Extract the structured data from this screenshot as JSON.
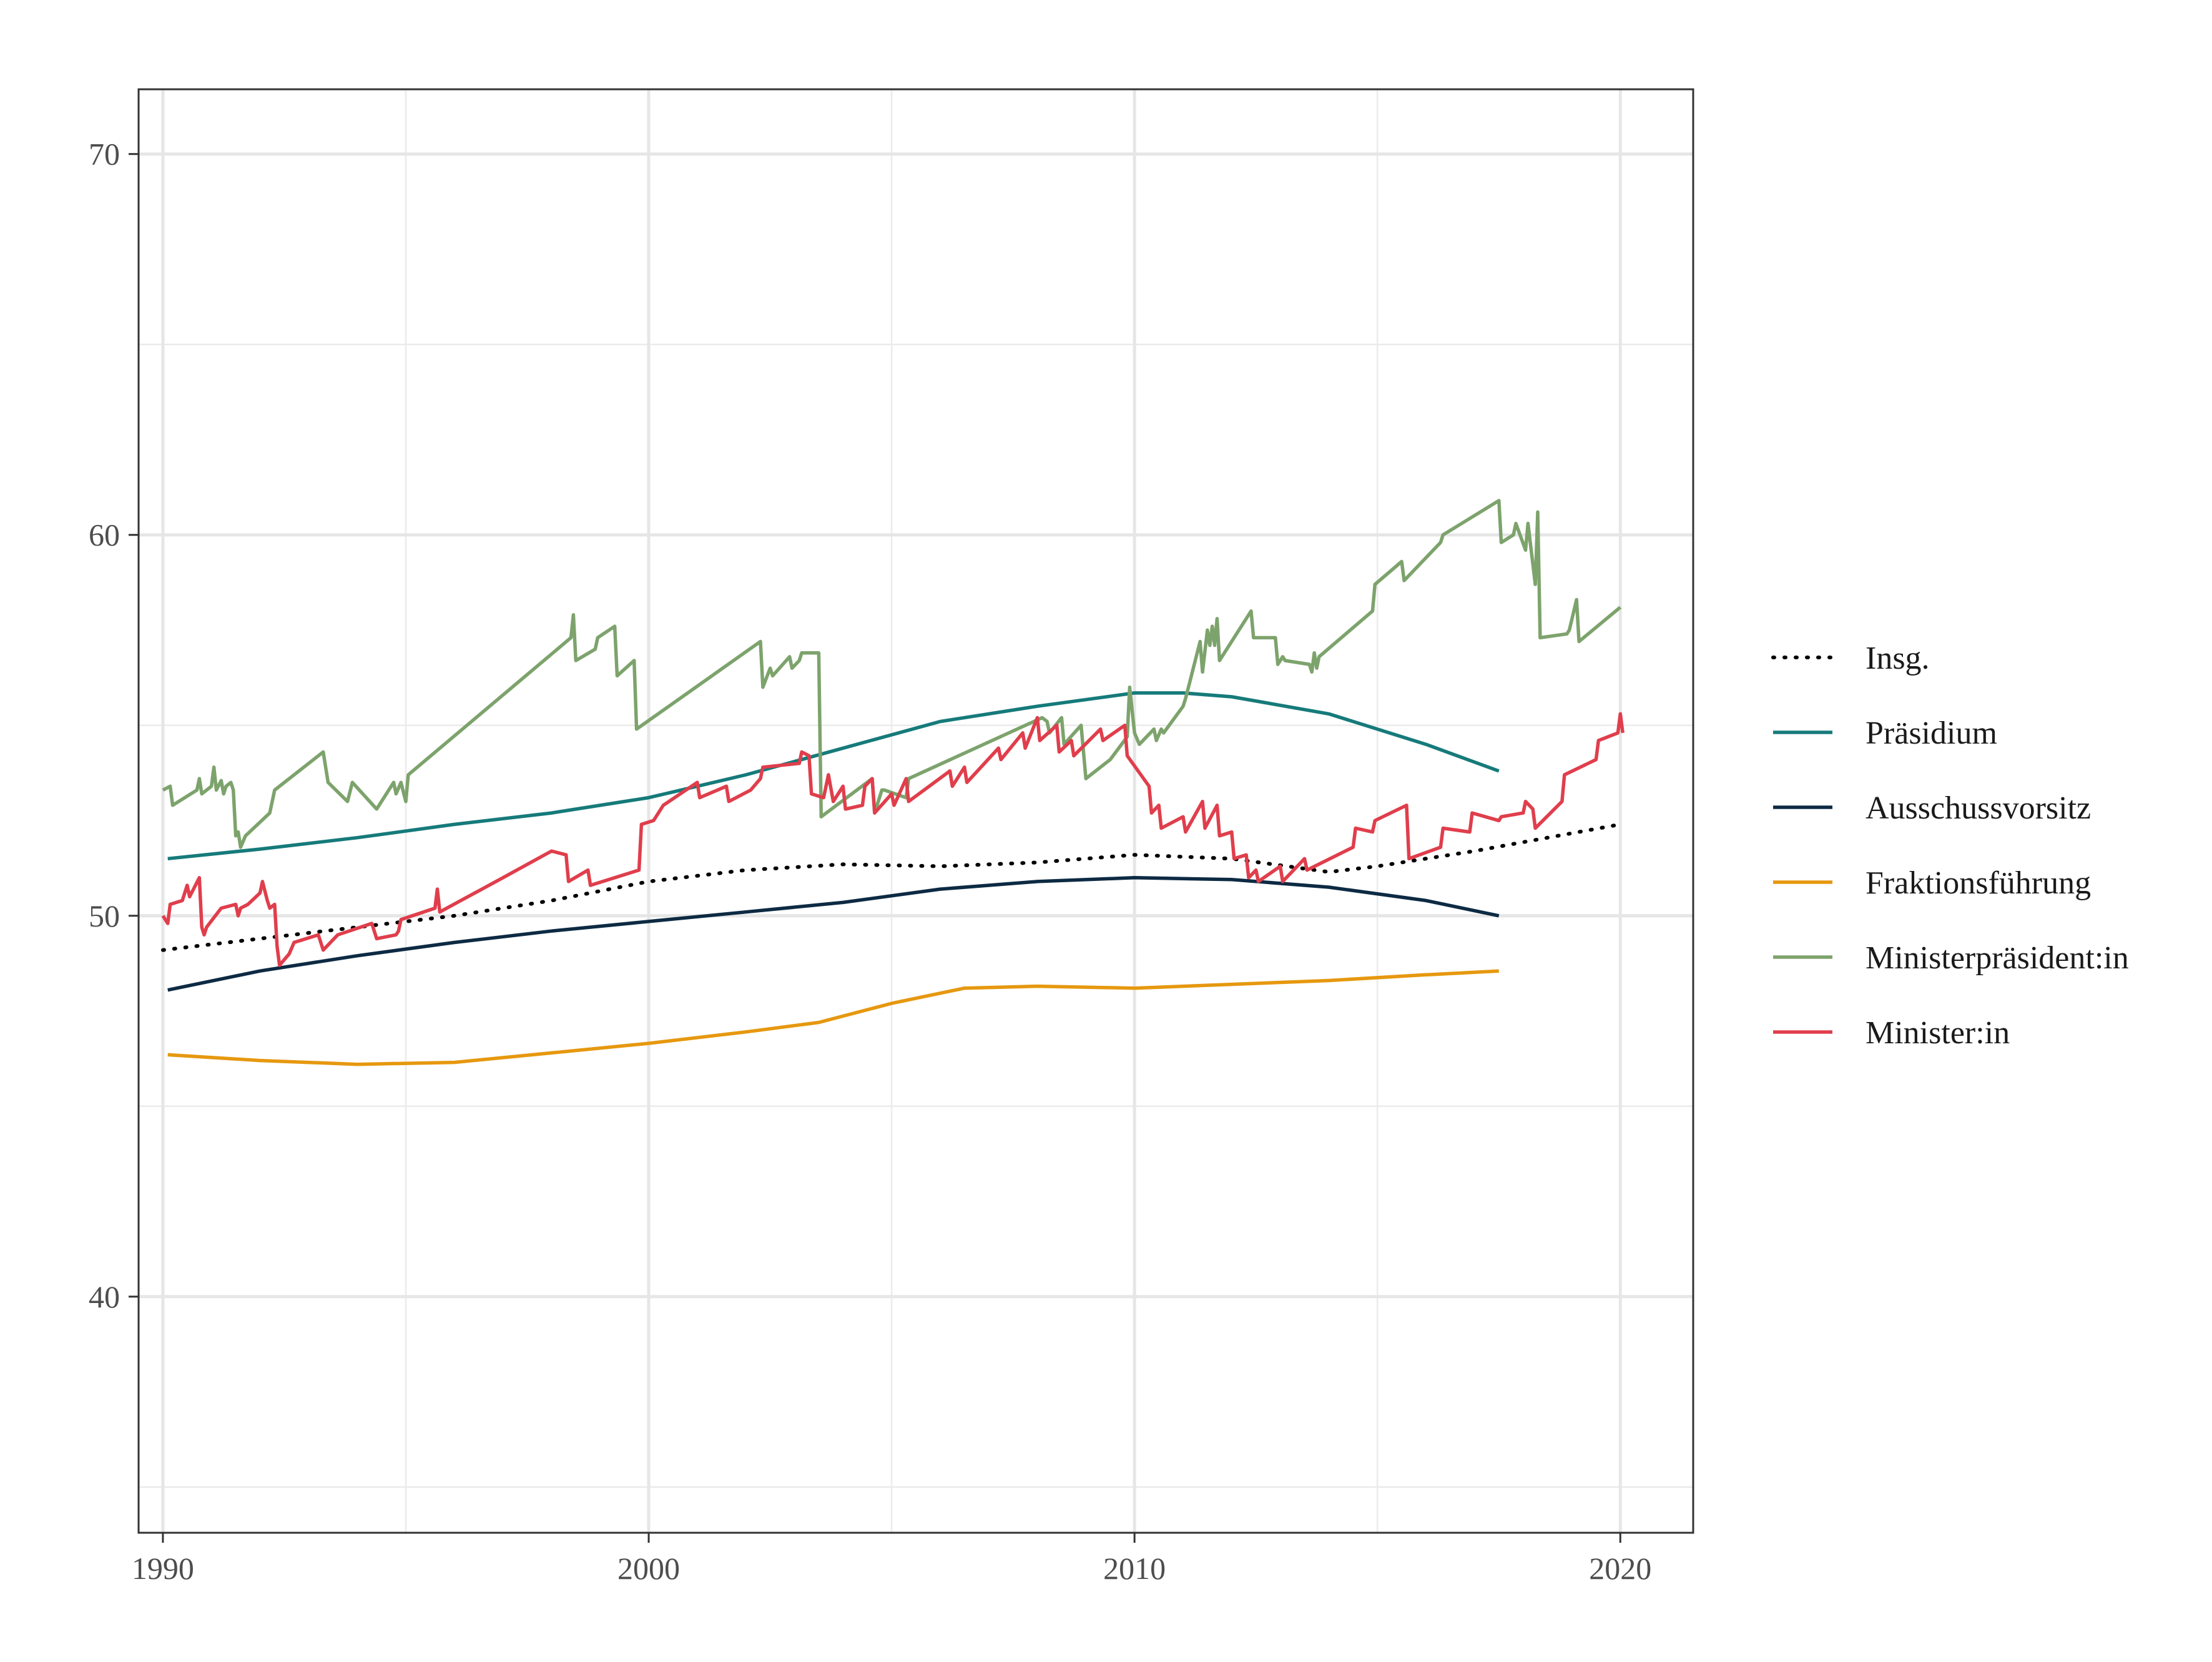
{
  "chart_data": {
    "type": "line",
    "title": "",
    "xlabel": "",
    "ylabel": "",
    "xlim": [
      1989.5,
      2021.5
    ],
    "ylim": [
      33.8,
      71.7
    ],
    "x_ticks": [
      1990,
      2000,
      2010,
      2020
    ],
    "x_tick_labels": [
      "1990",
      "2000",
      "2010",
      "2020"
    ],
    "y_ticks": [
      40,
      50,
      60,
      70
    ],
    "y_tick_labels": [
      "40",
      "50",
      "60",
      "70"
    ],
    "x_minor_grid": [
      1995,
      2005,
      2015
    ],
    "y_minor_grid": [
      35,
      45,
      55,
      65
    ],
    "grid": true,
    "legend_position": "right",
    "series": [
      {
        "name": "Insg.",
        "color": "#000000",
        "dash": "dotted",
        "x": [
          1990,
          1992,
          1994,
          1996,
          1998,
          2000,
          2002,
          2004,
          2006,
          2008,
          2010,
          2012,
          2014,
          2015,
          2017,
          2020
        ],
        "y": [
          49.1,
          49.4,
          49.7,
          50.0,
          50.4,
          50.9,
          51.2,
          51.35,
          51.3,
          51.4,
          51.6,
          51.5,
          51.15,
          51.3,
          51.7,
          52.4
        ]
      },
      {
        "name": "Präsidium",
        "color": "#167a7a",
        "dash": "solid",
        "x": [
          1990.1,
          1992,
          1994,
          1996,
          1998,
          2000,
          2002,
          2004,
          2006,
          2008,
          2010,
          2011,
          2012,
          2014,
          2016,
          2017.5
        ],
        "y": [
          51.5,
          51.75,
          52.05,
          52.4,
          52.7,
          53.1,
          53.7,
          54.4,
          55.1,
          55.5,
          55.85,
          55.85,
          55.75,
          55.3,
          54.5,
          53.8
        ]
      },
      {
        "name": "Ausschussvorsitz",
        "color": "#0d2a43",
        "dash": "solid",
        "x": [
          1990.1,
          1992,
          1994,
          1996,
          1998,
          2000,
          2002,
          2004,
          2006,
          2008,
          2010,
          2012,
          2014,
          2016,
          2017.5
        ],
        "y": [
          48.05,
          48.55,
          48.95,
          49.3,
          49.6,
          49.85,
          50.1,
          50.35,
          50.7,
          50.9,
          51.0,
          50.95,
          50.75,
          50.4,
          50.0
        ]
      },
      {
        "name": "Fraktionsführung",
        "color": "#e6980f",
        "dash": "solid",
        "x": [
          1990.1,
          1992,
          1994,
          1996,
          1998,
          2000,
          2002,
          2003.5,
          2005,
          2006.5,
          2008,
          2010,
          2012,
          2014,
          2016,
          2017.5
        ],
        "y": [
          46.35,
          46.2,
          46.1,
          46.15,
          46.4,
          46.65,
          46.95,
          47.2,
          47.7,
          48.1,
          48.15,
          48.1,
          48.2,
          48.3,
          48.45,
          48.55
        ]
      },
      {
        "name": "Ministerpräsident:in",
        "color": "#7da36c",
        "dash": "solid",
        "x": [
          1990,
          1990.15,
          1990.2,
          1990.7,
          1990.75,
          1990.8,
          1991,
          1991.05,
          1991.1,
          1991.2,
          1991.25,
          1991.3,
          1991.4,
          1991.45,
          1991.5,
          1991.55,
          1991.6,
          1991.7,
          1992.2,
          1992.3,
          1993.3,
          1993.35,
          1993.4,
          1993.8,
          1993.9,
          1994.4,
          1994.5,
          1994.75,
          1994.8,
          1994.9,
          1995,
          1995.05,
          1998.4,
          1998.45,
          1998.5,
          1998.9,
          1998.95,
          1999.3,
          1999.35,
          1999.7,
          1999.75,
          2002.3,
          2002.35,
          2002.5,
          2002.55,
          2002.9,
          2002.95,
          2003.1,
          2003.15,
          2003.5,
          2003.55,
          2004.6,
          2004.65,
          2004.8,
          2004.85,
          2005.3,
          2005.35,
          2008.1,
          2008.2,
          2008.25,
          2008.5,
          2008.55,
          2008.9,
          2009.0,
          2009.5,
          2009.85,
          2009.9,
          2010.0,
          2010.1,
          2010.4,
          2010.45,
          2010.55,
          2010.6,
          2011.0,
          2011.05,
          2011.35,
          2011.4,
          2011.5,
          2011.55,
          2011.6,
          2011.65,
          2011.7,
          2011.75,
          2012.4,
          2012.45,
          2012.9,
          2012.95,
          2013.05,
          2013.1,
          2013.6,
          2013.65,
          2013.7,
          2013.75,
          2013.8,
          2014.9,
          2014.95,
          2015.5,
          2015.55,
          2016.3,
          2016.35,
          2017.5,
          2017.55,
          2017.8,
          2017.85,
          2018.05,
          2018.1,
          2018.25,
          2018.3,
          2018.35,
          2018.9,
          2018.95,
          2019.1,
          2019.15,
          2020
        ],
        "y": [
          53.3,
          53.4,
          52.9,
          53.3,
          53.6,
          53.2,
          53.4,
          53.9,
          53.3,
          53.55,
          53.2,
          53.4,
          53.5,
          53.3,
          52.1,
          52.2,
          51.8,
          52.1,
          52.7,
          53.3,
          54.3,
          53.9,
          53.5,
          53.0,
          53.5,
          52.8,
          53.0,
          53.5,
          53.2,
          53.5,
          53.0,
          53.7,
          57.3,
          57.9,
          56.7,
          57.0,
          57.3,
          57.6,
          56.3,
          56.7,
          54.9,
          57.2,
          56.0,
          56.5,
          56.3,
          56.8,
          56.5,
          56.7,
          56.9,
          56.9,
          52.6,
          53.6,
          52.7,
          53.3,
          53.3,
          53.1,
          53.6,
          55.2,
          55.1,
          54.8,
          55.2,
          54.5,
          55.0,
          53.6,
          54.1,
          54.7,
          56.0,
          54.8,
          54.5,
          54.9,
          54.6,
          54.9,
          54.8,
          55.5,
          55.7,
          57.2,
          56.4,
          57.5,
          57.1,
          57.6,
          57.1,
          57.8,
          56.7,
          58.0,
          57.3,
          57.3,
          56.6,
          56.8,
          56.7,
          56.6,
          56.4,
          56.9,
          56.5,
          56.8,
          58.0,
          58.7,
          59.3,
          58.8,
          59.8,
          60.0,
          60.9,
          59.8,
          60.0,
          60.3,
          59.6,
          60.3,
          58.7,
          60.6,
          57.3,
          57.4,
          57.5,
          58.3,
          57.2,
          58.1
        ]
      },
      {
        "name": "Minister:in",
        "color": "#e03e4c",
        "dash": "solid",
        "x": [
          1990,
          1990.1,
          1990.15,
          1990.4,
          1990.5,
          1990.55,
          1990.75,
          1990.8,
          1990.85,
          1990.9,
          1991.2,
          1991.5,
          1991.55,
          1991.6,
          1991.75,
          1992.0,
          1992.05,
          1992.15,
          1992.2,
          1992.3,
          1992.35,
          1992.4,
          1992.6,
          1992.7,
          1993.2,
          1993.3,
          1993.6,
          1994.3,
          1994.4,
          1994.8,
          1994.85,
          1994.9,
          1995.6,
          1995.65,
          1995.7,
          1997.0,
          1998.0,
          1998.3,
          1998.35,
          1998.75,
          1998.8,
          1999.8,
          1999.85,
          2000.1,
          2000.3,
          2001.0,
          2001.05,
          2001.6,
          2001.65,
          2002.1,
          2002.3,
          2002.35,
          2003.1,
          2003.15,
          2003.3,
          2003.35,
          2003.6,
          2003.7,
          2003.8,
          2004.0,
          2004.05,
          2004.4,
          2004.45,
          2004.6,
          2004.65,
          2005.0,
          2005.05,
          2005.3,
          2005.35,
          2006.2,
          2006.25,
          2006.5,
          2006.55,
          2007.2,
          2007.25,
          2007.7,
          2007.75,
          2008.0,
          2008.05,
          2008.4,
          2008.45,
          2008.7,
          2008.75,
          2009.3,
          2009.35,
          2009.8,
          2009.85,
          2010.3,
          2010.35,
          2010.5,
          2010.55,
          2011.0,
          2011.05,
          2011.4,
          2011.45,
          2011.7,
          2011.75,
          2012.0,
          2012.05,
          2012.3,
          2012.35,
          2012.5,
          2012.55,
          2013.0,
          2013.05,
          2013.5,
          2013.55,
          2014.5,
          2014.55,
          2014.9,
          2014.95,
          2015.6,
          2015.65,
          2016.3,
          2016.35,
          2016.9,
          2016.95,
          2017.5,
          2017.55,
          2018.0,
          2018.05,
          2018.2,
          2018.25,
          2018.8,
          2018.85,
          2019.5,
          2019.55,
          2019.95,
          2020,
          2020.05
        ],
        "y": [
          50.0,
          49.8,
          50.3,
          50.4,
          50.8,
          50.5,
          51.0,
          49.7,
          49.5,
          49.7,
          50.2,
          50.3,
          50.0,
          50.2,
          50.3,
          50.6,
          50.9,
          50.4,
          50.2,
          50.3,
          49.2,
          48.7,
          49.0,
          49.3,
          49.5,
          49.1,
          49.5,
          49.8,
          49.4,
          49.5,
          49.6,
          49.9,
          50.2,
          50.7,
          50.1,
          51.0,
          51.7,
          51.6,
          50.9,
          51.2,
          50.8,
          51.2,
          52.4,
          52.5,
          52.9,
          53.5,
          53.1,
          53.4,
          53.0,
          53.3,
          53.6,
          53.9,
          54.0,
          54.3,
          54.2,
          53.2,
          53.1,
          53.7,
          53.0,
          53.4,
          52.8,
          52.9,
          53.4,
          53.6,
          52.7,
          53.2,
          52.9,
          53.6,
          53.0,
          53.8,
          53.4,
          53.9,
          53.5,
          54.4,
          54.1,
          54.8,
          54.4,
          55.2,
          54.6,
          55.0,
          54.3,
          54.6,
          54.2,
          54.9,
          54.6,
          55.0,
          54.2,
          53.4,
          52.7,
          52.9,
          52.3,
          52.6,
          52.2,
          53.0,
          52.3,
          52.9,
          52.1,
          52.2,
          51.5,
          51.6,
          51.0,
          51.2,
          50.9,
          51.3,
          50.9,
          51.5,
          51.2,
          51.8,
          52.3,
          52.2,
          52.5,
          52.9,
          51.5,
          51.8,
          52.3,
          52.2,
          52.7,
          52.5,
          52.6,
          52.7,
          53.0,
          52.8,
          52.3,
          53.0,
          53.7,
          54.1,
          54.6,
          54.8,
          55.3,
          54.8
        ]
      }
    ]
  }
}
